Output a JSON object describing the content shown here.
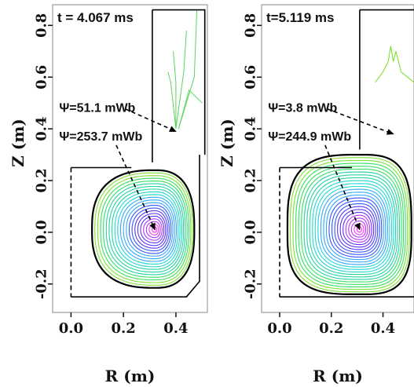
{
  "chart_data": [
    {
      "type": "contour",
      "panel": "left",
      "time_label": "t = 4.067 ms",
      "xlabel": "R (m)",
      "ylabel": "Z (m)",
      "xlim": [
        -0.07,
        0.52
      ],
      "ylim": [
        -0.31,
        0.88
      ],
      "x_ticks": [
        "0.0",
        "0.2",
        "0.4"
      ],
      "x_tick_values": [
        0.0,
        0.2,
        0.4
      ],
      "y_ticks": [
        "-0.2",
        "0.0",
        "0.2",
        "0.4",
        "0.6",
        "0.8"
      ],
      "y_tick_values": [
        -0.2,
        0.0,
        0.2,
        0.4,
        0.6,
        0.8
      ],
      "magnetic_axis": {
        "R": 0.32,
        "Z": 0.01
      },
      "annotations": [
        {
          "text": "Ψ=51.1 mWb",
          "label_pos": {
            "R": -0.045,
            "Z": 0.465
          },
          "arrow_to": {
            "R": 0.4,
            "Z": 0.39
          }
        },
        {
          "text": "Ψ=253.7 mWb",
          "label_pos": {
            "R": -0.045,
            "Z": 0.355
          },
          "arrow_to": {
            "R": 0.32,
            "Z": 0.01
          }
        }
      ],
      "contour_colors": [
        "#ff33ff",
        "#b833ff",
        "#5a33ff",
        "#3355ff",
        "#33a8ff",
        "#22d6d6",
        "#22d4a0",
        "#33e060",
        "#7de033"
      ]
    },
    {
      "type": "contour",
      "panel": "right",
      "time_label": "t=5.119 ms",
      "xlabel": "R (m)",
      "ylabel": "Z (m)",
      "xlim": [
        -0.07,
        0.52
      ],
      "ylim": [
        -0.31,
        0.88
      ],
      "x_ticks": [
        "0.0",
        "0.2",
        "0.4"
      ],
      "x_tick_values": [
        0.0,
        0.2,
        0.4
      ],
      "y_ticks": [
        "-0.2",
        "0.0",
        "0.2",
        "0.4",
        "0.6",
        "0.8"
      ],
      "y_tick_values": [
        -0.2,
        0.0,
        0.2,
        0.4,
        0.6,
        0.8
      ],
      "magnetic_axis": {
        "R": 0.31,
        "Z": 0.01
      },
      "annotations": [
        {
          "text": "Ψ=3.8 mWb",
          "label_pos": {
            "R": -0.045,
            "Z": 0.465
          },
          "arrow_to": {
            "R": 0.44,
            "Z": 0.38
          }
        },
        {
          "text": "Ψ=244.9 mWb",
          "label_pos": {
            "R": -0.045,
            "Z": 0.355
          },
          "arrow_to": {
            "R": 0.31,
            "Z": 0.01
          }
        }
      ],
      "contour_colors": [
        "#ff33ff",
        "#b833ff",
        "#5a33ff",
        "#3355ff",
        "#33a8ff",
        "#22d6d6",
        "#22d4a0",
        "#33e060",
        "#7de033"
      ]
    }
  ]
}
